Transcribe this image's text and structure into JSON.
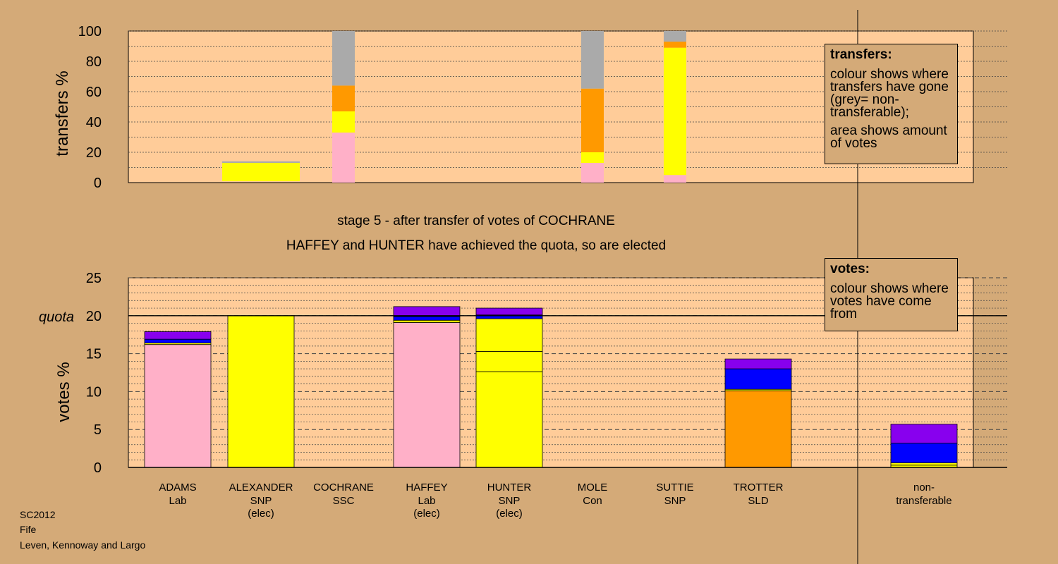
{
  "footer": {
    "line1": "SC2012",
    "line2": "Fife",
    "line3": "Leven, Kennoway and Largo"
  },
  "legend_transfers": {
    "title": "transfers:",
    "body1": "colour shows where transfers have gone (grey= non-transferable);",
    "body2": "area shows amount of votes"
  },
  "legend_votes": {
    "title": "votes:",
    "body1": "colour shows where votes have come from"
  },
  "colors": {
    "background": "#d4aa78",
    "plot_bg": "#ffcc99",
    "Lab": "#ffb0c8",
    "SNP": "#ffff00",
    "SSC": "#ff9900",
    "SLD": "#ff9900",
    "Con": "#0000ff",
    "other": "#8800ee",
    "nontransferable": "#aaaaaa"
  },
  "chart_data": [
    {
      "type": "bar",
      "subtype": "stacked",
      "ylabel": "transfers %",
      "ylim": [
        0,
        100
      ],
      "yticks": [
        0,
        20,
        40,
        60,
        80,
        100
      ],
      "bars": [
        {
          "column": 1,
          "stack": [
            {
              "color": "#ffff00",
              "from": 1,
              "to": 13
            },
            {
              "color": "#aaaaaa",
              "from": 13,
              "to": 14
            }
          ]
        },
        {
          "column": 2,
          "stack": [
            {
              "color": "#ffb0c8",
              "from": 0,
              "to": 33
            },
            {
              "color": "#ffff00",
              "from": 33,
              "to": 47
            },
            {
              "color": "#ff9900",
              "from": 47,
              "to": 64
            },
            {
              "color": "#aaaaaa",
              "from": 64,
              "to": 100
            }
          ]
        },
        {
          "column": 5,
          "stack": [
            {
              "color": "#ffb0c8",
              "from": 0,
              "to": 13
            },
            {
              "color": "#ffff00",
              "from": 13,
              "to": 20
            },
            {
              "color": "#ff9900",
              "from": 20,
              "to": 62
            },
            {
              "color": "#aaaaaa",
              "from": 62,
              "to": 100
            }
          ]
        },
        {
          "column": 6,
          "stack": [
            {
              "color": "#ffb0c8",
              "from": 0,
              "to": 5
            },
            {
              "color": "#ffff00",
              "from": 5,
              "to": 89
            },
            {
              "color": "#ff9900",
              "from": 89,
              "to": 93
            },
            {
              "color": "#aaaaaa",
              "from": 93,
              "to": 100
            }
          ]
        }
      ]
    },
    {
      "type": "bar",
      "subtype": "stacked",
      "title": "stage 5 - after transfer of votes of COCHRANE",
      "subtitle": "HAFFEY and HUNTER have achieved the quota, so are elected",
      "ylabel": "votes %",
      "ylim": [
        0,
        25
      ],
      "yticks": [
        0,
        5,
        10,
        15,
        20,
        25
      ],
      "quota_label": "quota",
      "quota": 20,
      "categories": [
        {
          "name": "ADAMS",
          "party": "Lab",
          "note": ""
        },
        {
          "name": "ALEXANDER",
          "party": "SNP",
          "note": "(elec)"
        },
        {
          "name": "COCHRANE",
          "party": "SSC",
          "note": ""
        },
        {
          "name": "HAFFEY",
          "party": "Lab",
          "note": "(elec)"
        },
        {
          "name": "HUNTER",
          "party": "SNP",
          "note": "(elec)"
        },
        {
          "name": "MOLE",
          "party": "Con",
          "note": ""
        },
        {
          "name": "SUTTIE",
          "party": "SNP",
          "note": ""
        },
        {
          "name": "TROTTER",
          "party": "SLD",
          "note": ""
        }
      ],
      "nontransferable_label": "non-transferable",
      "bars": [
        {
          "column": 0,
          "stack": [
            {
              "color": "#ffb0c8",
              "value": 16.2
            },
            {
              "color": "#ffff00",
              "value": 0.2
            },
            {
              "color": "#0000ff",
              "value": 0.5
            },
            {
              "color": "#8800ee",
              "value": 1.0
            }
          ]
        },
        {
          "column": 1,
          "stack": [
            {
              "color": "#ffff00",
              "value": 20.0
            }
          ]
        },
        {
          "column": 2,
          "stack": []
        },
        {
          "column": 3,
          "stack": [
            {
              "color": "#ffb0c8",
              "value": 19.1
            },
            {
              "color": "#ffff00",
              "value": 0.3
            },
            {
              "color": "#0000ff",
              "value": 0.5
            },
            {
              "color": "#8800ee",
              "value": 1.3
            }
          ]
        },
        {
          "column": 4,
          "stack": [
            {
              "color": "#ffff00",
              "value": 12.6
            },
            {
              "color": "#ffff00",
              "value": 2.7
            },
            {
              "color": "#ffff00",
              "value": 4.3
            },
            {
              "color": "#0000ff",
              "value": 0.5
            },
            {
              "color": "#8800ee",
              "value": 0.9
            }
          ]
        },
        {
          "column": 5,
          "stack": []
        },
        {
          "column": 6,
          "stack": []
        },
        {
          "column": 7,
          "stack": [
            {
              "color": "#ff9900",
              "value": 10.1
            },
            {
              "color": "#ffff00",
              "value": 0.2
            },
            {
              "color": "#0000ff",
              "value": 2.7
            },
            {
              "color": "#8800ee",
              "value": 1.3
            }
          ]
        },
        {
          "column": 9,
          "stack": [
            {
              "color": "#ffff00",
              "value": 0.3
            },
            {
              "color": "#ffff00",
              "value": 0.3
            },
            {
              "color": "#0000ff",
              "value": 2.6
            },
            {
              "color": "#8800ee",
              "value": 2.5
            }
          ]
        }
      ]
    }
  ]
}
